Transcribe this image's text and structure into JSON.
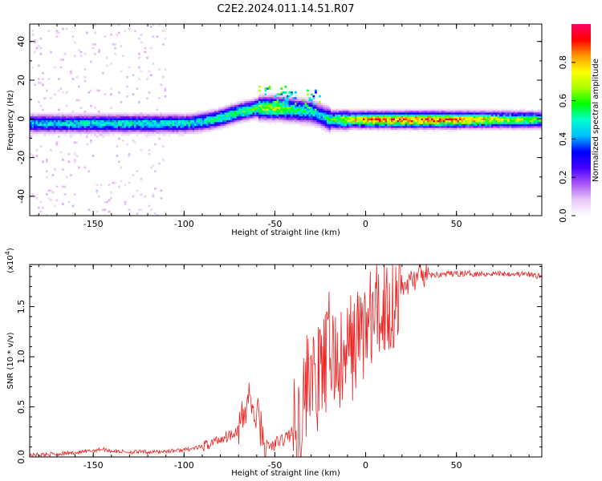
{
  "figure": {
    "title": "C2E2.2024.011.14.51.R07"
  },
  "chart_data": [
    {
      "type": "heatmap",
      "xlabel": "Height of straight line (km)",
      "ylabel": "Frequency (Hz)",
      "xlim": [
        -185,
        97
      ],
      "ylim": [
        -50,
        49
      ],
      "xticks": [
        -150,
        -100,
        -50,
        0,
        50
      ],
      "xtick_labels": [
        "-150",
        "-100",
        "-50",
        "0",
        "50"
      ],
      "yticks": [
        -40,
        -20,
        0,
        20,
        40
      ],
      "ytick_labels": [
        "-40",
        "-20",
        "0",
        "20",
        "40"
      ],
      "colorbar": {
        "label": "Normalized spectral amplitude",
        "range": [
          0,
          1
        ],
        "ticks": [
          0.0,
          0.2,
          0.4,
          0.6,
          0.8
        ],
        "tick_labels": [
          "0.0",
          "0.2",
          "0.4",
          "0.6",
          "0.8"
        ],
        "colormap": [
          "#ffffff",
          "#e7c6f7",
          "#a855f7",
          "#4400ff",
          "#0000ff",
          "#00bfff",
          "#00ffcc",
          "#00ff00",
          "#aaff00",
          "#ffff00",
          "#ff9900",
          "#ff0000",
          "#ff0066"
        ]
      },
      "ridge": [
        {
          "x": -185,
          "center": -2,
          "amplitude": 0.45
        },
        {
          "x": -150,
          "center": -2,
          "amplitude": 0.48
        },
        {
          "x": -120,
          "center": -2,
          "amplitude": 0.5
        },
        {
          "x": -100,
          "center": -2,
          "amplitude": 0.48
        },
        {
          "x": -90,
          "center": -1,
          "amplitude": 0.5
        },
        {
          "x": -80,
          "center": 1,
          "amplitude": 0.55
        },
        {
          "x": -70,
          "center": 4,
          "amplitude": 0.58
        },
        {
          "x": -60,
          "center": 6,
          "amplitude": 0.62
        },
        {
          "x": -50,
          "center": 6,
          "amplitude": 0.7
        },
        {
          "x": -40,
          "center": 5,
          "amplitude": 0.55
        },
        {
          "x": -30,
          "center": 4,
          "amplitude": 0.5
        },
        {
          "x": -25,
          "center": 2,
          "amplitude": 0.45
        },
        {
          "x": -20,
          "center": 0,
          "amplitude": 0.55
        },
        {
          "x": -10,
          "center": 0,
          "amplitude": 0.75
        },
        {
          "x": 0,
          "center": 0,
          "amplitude": 0.85
        },
        {
          "x": 25,
          "center": 0,
          "amplitude": 0.9
        },
        {
          "x": 50,
          "center": 0,
          "amplitude": 0.85
        },
        {
          "x": 75,
          "center": 0,
          "amplitude": 0.7
        },
        {
          "x": 97,
          "center": 0,
          "amplitude": 0.6
        }
      ]
    },
    {
      "type": "line",
      "xlabel": "Height of straight line (km)",
      "ylabel": "SNR (10 * v/v)",
      "y_multiplier_label": "(x10",
      "y_multiplier_exponent": "4",
      "y_multiplier_close": ")",
      "xlim": [
        -185,
        97
      ],
      "ylim": [
        0,
        1.92
      ],
      "xticks": [
        -150,
        -100,
        -50,
        0,
        50
      ],
      "xtick_labels": [
        "-150",
        "-100",
        "-50",
        "0",
        "50"
      ],
      "yticks": [
        0.0,
        0.5,
        1.0,
        1.5
      ],
      "ytick_labels": [
        "0.0",
        "0.5",
        "1.0",
        "1.5"
      ],
      "series": [
        {
          "color": "#ee2222",
          "x": [
            -185,
            -170,
            -155,
            -145,
            -140,
            -130,
            -115,
            -100,
            -90,
            -85,
            -80,
            -75,
            -70,
            -66,
            -64,
            -62,
            -60,
            -55,
            -50,
            -45,
            -40,
            -36,
            -34,
            -32,
            -30,
            -28,
            -25,
            -22,
            -20,
            -18,
            -15,
            -12,
            -10,
            -8,
            -5,
            -3,
            0,
            5,
            10,
            15,
            20,
            25,
            30,
            40,
            50,
            60,
            70,
            80,
            90,
            97
          ],
          "y": [
            0.02,
            0.03,
            0.05,
            0.08,
            0.06,
            0.05,
            0.05,
            0.07,
            0.1,
            0.14,
            0.18,
            0.22,
            0.28,
            0.45,
            0.7,
            0.35,
            0.45,
            0.1,
            0.12,
            0.18,
            0.25,
            0.35,
            0.55,
            0.75,
            1.0,
            0.6,
            0.85,
            0.9,
            1.15,
            1.0,
            0.95,
            0.85,
            1.05,
            1.1,
            1.15,
            1.25,
            1.3,
            1.4,
            1.5,
            1.55,
            1.68,
            1.76,
            1.8,
            1.82,
            1.83,
            1.83,
            1.83,
            1.83,
            1.82,
            1.8
          ]
        }
      ]
    }
  ]
}
